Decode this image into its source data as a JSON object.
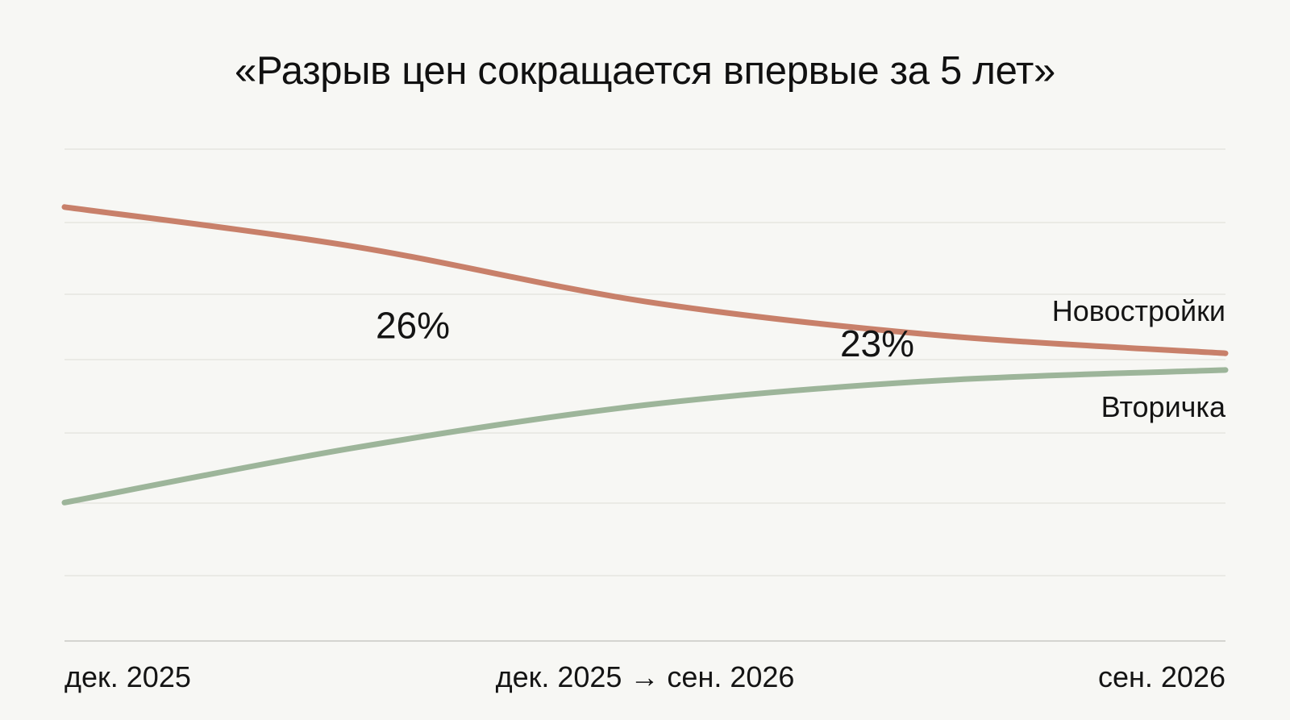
{
  "title": "«Разрыв цен сокращается впервые за 5 лет»",
  "chart_data": {
    "type": "line",
    "title": "«Разрыв цен сокращается впервые за 5 лет»",
    "x_tick_labels": [
      "дек. 2025",
      "дек. 2025 → сен. 2026",
      "сен. 2026"
    ],
    "grid": true,
    "series": [
      {
        "name": "Новостройки",
        "color": "#c8806a",
        "points": [
          [
            0,
            8.1
          ],
          [
            0.25,
            6.8
          ],
          [
            0.5,
            5.0
          ],
          [
            0.75,
            3.9
          ],
          [
            1.0,
            3.3
          ]
        ]
      },
      {
        "name": "Вторичка",
        "color": "#9db59a",
        "points": [
          [
            0,
            -1.6
          ],
          [
            0.25,
            0.2
          ],
          [
            0.5,
            1.6
          ],
          [
            0.75,
            2.4
          ],
          [
            1.0,
            2.75
          ]
        ]
      }
    ],
    "annotations": [
      {
        "text": "26%",
        "x": 0.3,
        "y": 3.8
      },
      {
        "text": "23%",
        "x": 0.7,
        "y": 3.2
      }
    ]
  }
}
